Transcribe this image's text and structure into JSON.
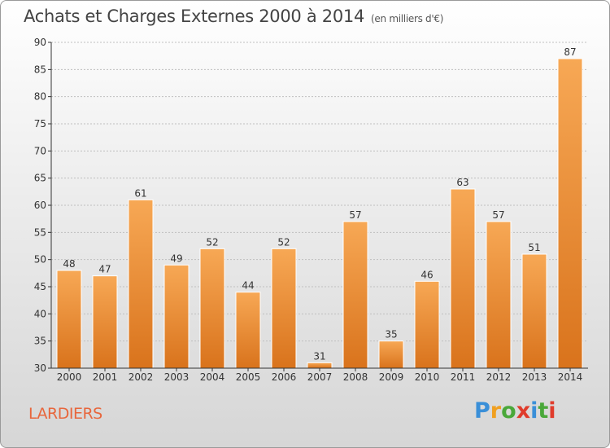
{
  "title": "Achats et Charges Externes 2000 à 2014",
  "subtitle": "(en milliers d'€)",
  "commune": "LARDIERS",
  "logo": {
    "letters": [
      "P",
      "r",
      "o",
      "x",
      "i",
      "t",
      "i"
    ],
    "colors": [
      "#3a8fd8",
      "#f0a020",
      "#4aa83a",
      "#e03c2c",
      "#3a8fd8",
      "#4aa83a",
      "#e03c2c"
    ]
  },
  "colors": {
    "bar_light": "#f7a855",
    "bar_dark": "#d9731c",
    "axis": "#333333",
    "grid": "#bfbfbf",
    "commune": "#e8663c"
  },
  "chart_data": {
    "type": "bar",
    "categories": [
      "2000",
      "2001",
      "2002",
      "2003",
      "2004",
      "2005",
      "2006",
      "2007",
      "2008",
      "2009",
      "2010",
      "2011",
      "2012",
      "2013",
      "2014"
    ],
    "values": [
      48,
      47,
      61,
      49,
      52,
      44,
      52,
      31,
      57,
      35,
      46,
      63,
      57,
      51,
      87
    ],
    "ylim": [
      30,
      90
    ],
    "yticks": [
      30,
      35,
      40,
      45,
      50,
      55,
      60,
      65,
      70,
      75,
      80,
      85,
      90
    ],
    "grid": true,
    "xlabel": "",
    "ylabel": ""
  }
}
